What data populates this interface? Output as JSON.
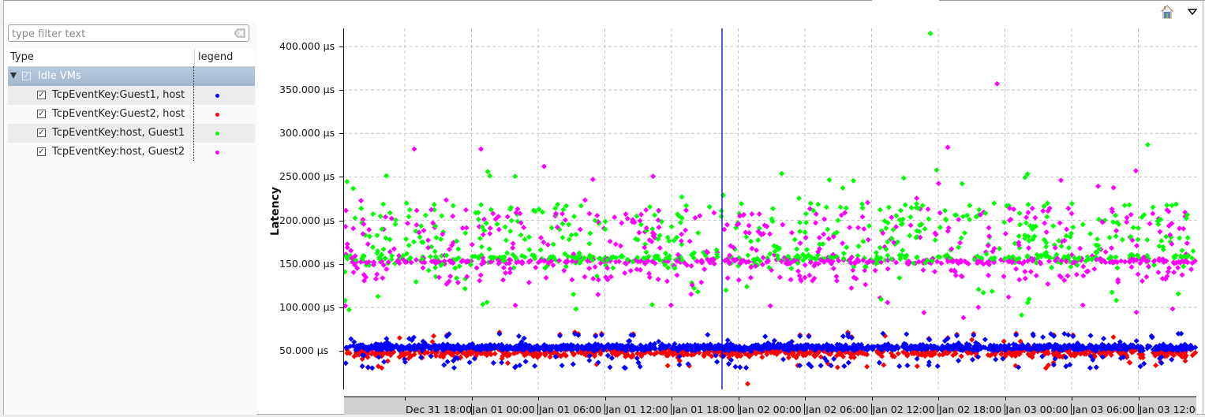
{
  "toolbar": {
    "icons": [
      "home-icon",
      "view-menu-icon"
    ]
  },
  "left_panel": {
    "filter": {
      "placeholder": "type filter text",
      "value": ""
    },
    "columns": [
      "Type",
      "legend"
    ],
    "group": {
      "label": "Idle VMs",
      "expanded": true,
      "checked": true
    },
    "items": [
      {
        "label": "TcpEventKey:Guest1, host",
        "checked": true,
        "color": "#0000ff"
      },
      {
        "label": "TcpEventKey:Guest2, host",
        "checked": true,
        "color": "#ff0000"
      },
      {
        "label": "TcpEventKey:host, Guest1",
        "checked": true,
        "color": "#00ff00"
      },
      {
        "label": "TcpEventKey:host, Guest2",
        "checked": true,
        "color": "#ff00ff"
      }
    ]
  },
  "chart_data": {
    "type": "scatter",
    "title": "",
    "xlabel": "",
    "ylabel": "Latency",
    "y_unit": "µs",
    "ylim": [
      5,
      425
    ],
    "yticks": [
      "50.000 µs",
      "100.000 µs",
      "150.000 µs",
      "200.000 µs",
      "250.000 µs",
      "300.000 µs",
      "350.000 µs",
      "400.000 µs"
    ],
    "ytick_values": [
      50,
      100,
      150,
      200,
      250,
      300,
      350,
      400
    ],
    "xticks": [
      "Dec 31 18:00",
      "Jan 01 00:00",
      "Jan 01 06:00",
      "Jan 01 12:00",
      "Jan 01 18:00",
      "Jan 02 00:00",
      "Jan 02 06:00",
      "Jan 02 12:00",
      "Jan 02 18:00",
      "Jan 03 00:00",
      "Jan 03 06:00",
      "Jan 03 12:00"
    ],
    "xlim": [
      "Dec 31 12:27",
      "Jan 03 12:30"
    ],
    "grid": true,
    "cursor_time": "Jan 01 16:45",
    "series": [
      {
        "name": "TcpEventKey:Guest1, host",
        "color": "#0000ff",
        "marker": "diamond",
        "center": 53,
        "spread_low": 28,
        "spread_high": 75
      },
      {
        "name": "TcpEventKey:Guest2, host",
        "color": "#ff0000",
        "marker": "diamond",
        "center": 48,
        "spread_low": 12,
        "spread_high": 73
      },
      {
        "name": "TcpEventKey:host, Guest1",
        "color": "#00ff00",
        "marker": "diamond",
        "center": 180,
        "spread_low": 65,
        "spread_high": 415
      },
      {
        "name": "TcpEventKey:host, Guest2",
        "color": "#ff00ff",
        "marker": "diamond",
        "center": 155,
        "spread_low": 88,
        "spread_high": 357
      }
    ],
    "outliers": [
      {
        "series": "TcpEventKey:host, Guest1",
        "x": "Jan 02 18:00",
        "y": 415
      },
      {
        "series": "TcpEventKey:host, Guest2",
        "x": "Jan 03 00:00",
        "y": 357
      },
      {
        "series": "TcpEventKey:host, Guest1",
        "x": "Jan 03 12:00",
        "y": 287
      },
      {
        "series": "TcpEventKey:host, Guest2",
        "x": "Dec 31 18:00",
        "y": 282
      },
      {
        "series": "TcpEventKey:host, Guest2",
        "x": "Jan 01 00:00",
        "y": 282
      },
      {
        "series": "TcpEventKey:host, Guest2",
        "x": "Jan 02 18:00",
        "y": 284
      },
      {
        "series": "TcpEventKey:Guest2, host",
        "x": "Jan 02 00:00",
        "y": 12
      }
    ]
  }
}
